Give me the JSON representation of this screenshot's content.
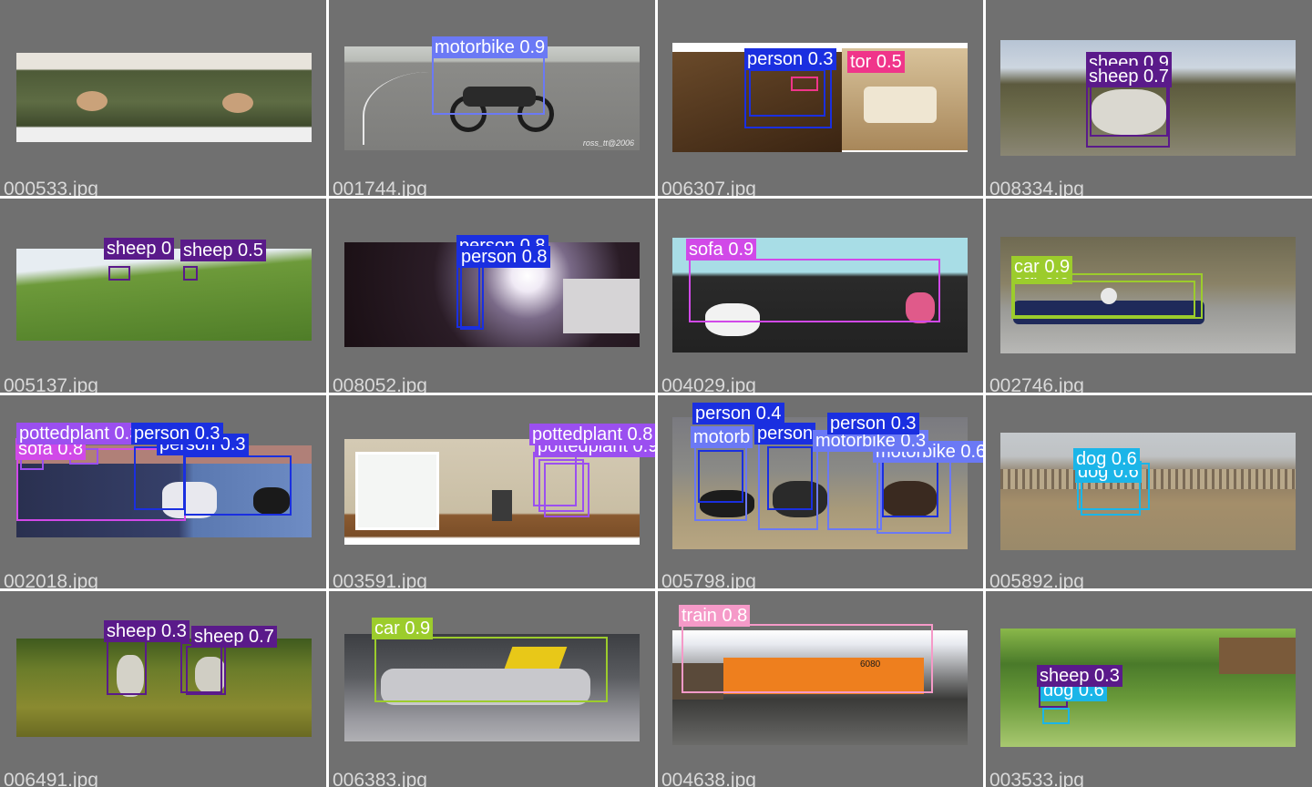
{
  "tiles": [
    {
      "file": "000533.jpg",
      "labels": []
    },
    {
      "file": "001744.jpg",
      "labels": [
        {
          "text": "motorbike 0.9",
          "color": "#6b79f5"
        }
      ],
      "watermark": "ross_tt@2006"
    },
    {
      "file": "006307.jpg",
      "labels": [
        {
          "text": "person 0.3",
          "color": "#1a2fe0"
        },
        {
          "text": "tor 0.5",
          "color": "#f0358a"
        }
      ]
    },
    {
      "file": "008334.jpg",
      "labels": [
        {
          "text": "sheep 0.9",
          "color": "#5a1a8a"
        },
        {
          "text": "sheep 0.7",
          "color": "#5a1a8a"
        }
      ]
    },
    {
      "file": "005137.jpg",
      "labels": [
        {
          "text": "sheep 0",
          "color": "#5a1a8a"
        },
        {
          "text": "sheep 0.5",
          "color": "#5a1a8a"
        }
      ]
    },
    {
      "file": "008052.jpg",
      "labels": [
        {
          "text": "person 0.8",
          "color": "#1a2fe0"
        },
        {
          "text": "person 0.8",
          "color": "#1a2fe0"
        }
      ]
    },
    {
      "file": "004029.jpg",
      "labels": [
        {
          "text": "sofa 0.9",
          "color": "#d149e8"
        }
      ]
    },
    {
      "file": "002746.jpg",
      "labels": [
        {
          "text": "car 0.9",
          "color": "#9ccc2c"
        },
        {
          "text": "car 0.9",
          "color": "#9ccc2c"
        }
      ]
    },
    {
      "file": "002018.jpg",
      "labels": [
        {
          "text": "pottedplant 0.3",
          "color": "#9b4ff0"
        },
        {
          "text": "person 0.3",
          "color": "#1a2fe0"
        },
        {
          "text": "sofa 0.8",
          "color": "#d149e8"
        },
        {
          "text": "person 0.3",
          "color": "#1a2fe0"
        }
      ]
    },
    {
      "file": "003591.jpg",
      "labels": [
        {
          "text": "pottedplant 0.8",
          "color": "#9b4ff0"
        },
        {
          "text": "pottedplant 0.9",
          "color": "#9b4ff0"
        }
      ]
    },
    {
      "file": "005798.jpg",
      "labels": [
        {
          "text": "person 0.4",
          "color": "#1a2fe0"
        },
        {
          "text": "person 0.3",
          "color": "#1a2fe0"
        },
        {
          "text": "motorbike 0.3",
          "color": "#6b79f5"
        },
        {
          "text": "motorbike 0.6",
          "color": "#6b79f5"
        },
        {
          "text": "person",
          "color": "#1a2fe0"
        },
        {
          "text": "motorb",
          "color": "#6b79f5"
        }
      ]
    },
    {
      "file": "005892.jpg",
      "labels": [
        {
          "text": "dog 0.6",
          "color": "#1bb5e8"
        },
        {
          "text": "dog 0.6",
          "color": "#1bb5e8"
        }
      ]
    },
    {
      "file": "006491.jpg",
      "labels": [
        {
          "text": "sheep 0.3",
          "color": "#5a1a8a"
        },
        {
          "text": "sheep 0.7",
          "color": "#5a1a8a"
        }
      ]
    },
    {
      "file": "006383.jpg",
      "labels": [
        {
          "text": "car 0.9",
          "color": "#9ccc2c"
        }
      ]
    },
    {
      "file": "004638.jpg",
      "labels": [
        {
          "text": "train 0.8",
          "color": "#f59ac8"
        }
      ],
      "train_number": "6080"
    },
    {
      "file": "003533.jpg",
      "labels": [
        {
          "text": "sheep 0.3",
          "color": "#5a1a8a"
        },
        {
          "text": "dog 0.6",
          "color": "#1bb5e8"
        }
      ]
    }
  ]
}
